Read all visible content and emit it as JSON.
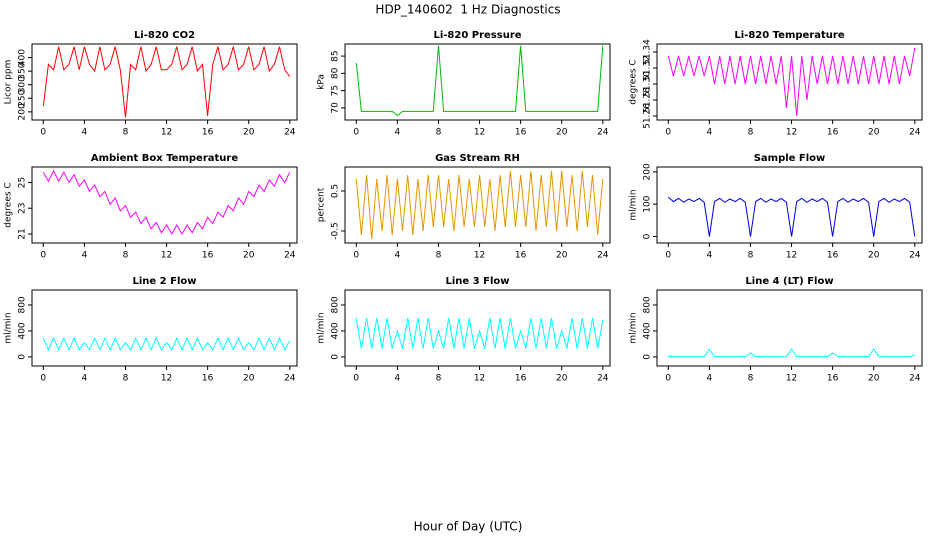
{
  "title": "HDP_140602  1 Hz Diagnostics",
  "xlabel": "Hour of Day (UTC)",
  "chart_data": [
    {
      "type": "line",
      "title": "Li-820 CO2",
      "ylabel": "Licor ppm",
      "color": "#ff0000",
      "x": [
        0,
        0.5,
        1,
        1.5,
        2,
        2.5,
        3,
        3.5,
        4,
        4.5,
        5,
        5.5,
        6,
        6.5,
        7,
        7.5,
        8,
        8.5,
        9,
        9.5,
        10,
        10.5,
        11,
        11.5,
        12,
        12.5,
        13,
        13.5,
        14,
        14.5,
        15,
        15.5,
        16,
        16.5,
        17,
        17.5,
        18,
        18.5,
        19,
        19.5,
        20,
        20.5,
        21,
        21.5,
        22,
        22.5,
        23,
        23.5,
        24
      ],
      "values": [
        220,
        375,
        355,
        440,
        355,
        375,
        440,
        355,
        440,
        375,
        350,
        440,
        355,
        375,
        440,
        355,
        180,
        375,
        355,
        440,
        350,
        375,
        440,
        355,
        355,
        375,
        440,
        355,
        375,
        440,
        350,
        375,
        185,
        375,
        440,
        355,
        375,
        440,
        355,
        375,
        440,
        355,
        375,
        440,
        350,
        375,
        440,
        355,
        330
      ],
      "xlim": [
        -1.1,
        24.7
      ],
      "xticks": [
        0,
        4,
        8,
        12,
        16,
        20,
        24
      ],
      "ylim": [
        170,
        450
      ],
      "yticks": [
        200,
        250,
        300,
        350,
        400
      ]
    },
    {
      "type": "line",
      "title": "Li-820 Pressure",
      "ylabel": "kPa",
      "color": "#00bb00",
      "x": [
        0,
        0.5,
        1,
        1.5,
        2,
        2.5,
        3,
        3.5,
        4,
        4.5,
        5,
        5.5,
        6,
        6.5,
        7,
        7.5,
        8,
        8.5,
        9,
        9.5,
        10,
        10.5,
        11,
        11.5,
        12,
        12.5,
        13,
        13.5,
        14,
        14.5,
        15,
        15.5,
        16,
        16.5,
        17,
        17.5,
        18,
        18.5,
        19,
        19.5,
        20,
        20.5,
        21,
        21.5,
        22,
        22.5,
        23,
        23.5,
        24
      ],
      "values": [
        83,
        69,
        69,
        69,
        69,
        69,
        69,
        69,
        67.8,
        69,
        69,
        69,
        69,
        69,
        69,
        69,
        88,
        69,
        69,
        69,
        69,
        69,
        69,
        69,
        69,
        69,
        69,
        69,
        69,
        69,
        69,
        69,
        88,
        69,
        69,
        69,
        69,
        69,
        69,
        69,
        69,
        69,
        69,
        69,
        69,
        69,
        69,
        69,
        88
      ],
      "xlim": [
        -1.1,
        24.7
      ],
      "xticks": [
        0,
        4,
        8,
        12,
        16,
        20,
        24
      ],
      "ylim": [
        66.5,
        88.5
      ],
      "yticks": [
        70,
        75,
        80,
        85
      ]
    },
    {
      "type": "line",
      "title": "Li-820 Temperature",
      "ylabel": "degrees C",
      "color": "#ff00ff",
      "x": [
        0,
        0.5,
        1,
        1.5,
        2,
        2.5,
        3,
        3.5,
        4,
        4.5,
        5,
        5.5,
        6,
        6.5,
        7,
        7.5,
        8,
        8.5,
        9,
        9.5,
        10,
        10.5,
        11,
        11.5,
        12,
        12.5,
        13,
        13.5,
        14,
        14.5,
        15,
        15.5,
        16,
        16.5,
        17,
        17.5,
        18,
        18.5,
        19,
        19.5,
        20,
        20.5,
        21,
        21.5,
        22,
        22.5,
        23,
        23.5,
        24
      ],
      "values": [
        51.335,
        51.31,
        51.335,
        51.31,
        51.335,
        51.31,
        51.335,
        51.31,
        51.335,
        51.3,
        51.335,
        51.3,
        51.335,
        51.3,
        51.335,
        51.3,
        51.335,
        51.3,
        51.335,
        51.3,
        51.335,
        51.3,
        51.335,
        51.27,
        51.335,
        51.26,
        51.335,
        51.28,
        51.335,
        51.3,
        51.335,
        51.3,
        51.335,
        51.3,
        51.335,
        51.3,
        51.335,
        51.3,
        51.335,
        51.3,
        51.335,
        51.3,
        51.335,
        51.3,
        51.335,
        51.3,
        51.335,
        51.31,
        51.345
      ],
      "xlim": [
        -1.1,
        24.7
      ],
      "xticks": [
        0,
        4,
        8,
        12,
        16,
        20,
        24
      ],
      "ylim": [
        51.255,
        51.35
      ],
      "yticks": [
        51.26,
        51.28,
        {
          "value": 51.3,
          "label": "51.30"
        },
        51.32,
        51.34
      ]
    },
    {
      "type": "line",
      "title": "Ambient Box Temperature",
      "ylabel": "degrees C",
      "color": "#ff00ff",
      "x": [
        0,
        0.5,
        1,
        1.5,
        2,
        2.5,
        3,
        3.5,
        4,
        4.5,
        5,
        5.5,
        6,
        6.5,
        7,
        7.5,
        8,
        8.5,
        9,
        9.5,
        10,
        10.5,
        11,
        11.5,
        12,
        12.5,
        13,
        13.5,
        14,
        14.5,
        15,
        15.5,
        16,
        16.5,
        17,
        17.5,
        18,
        18.5,
        19,
        19.5,
        20,
        20.5,
        21,
        21.5,
        22,
        22.5,
        23,
        23.5,
        24
      ],
      "values": [
        25.8,
        25.1,
        25.9,
        25.1,
        25.8,
        25.0,
        25.6,
        24.7,
        25.2,
        24.3,
        24.8,
        23.9,
        24.3,
        23.3,
        23.8,
        22.8,
        23.2,
        22.3,
        22.7,
        21.8,
        22.3,
        21.4,
        21.9,
        21.1,
        21.7,
        21.0,
        21.7,
        21.0,
        21.7,
        21.1,
        21.9,
        21.4,
        22.3,
        21.8,
        22.7,
        22.3,
        23.2,
        22.8,
        23.8,
        23.3,
        24.3,
        23.9,
        24.8,
        24.3,
        25.2,
        24.7,
        25.6,
        25.0,
        25.8
      ],
      "xlim": [
        -1.1,
        24.7
      ],
      "xticks": [
        0,
        4,
        8,
        12,
        16,
        20,
        24
      ],
      "ylim": [
        20.3,
        26.2
      ],
      "yticks": [
        21,
        23,
        25
      ]
    },
    {
      "type": "line",
      "title": "Gas Stream RH",
      "ylabel": "percent",
      "color": "#e69500",
      "x": [
        0,
        0.5,
        1,
        1.5,
        2,
        2.5,
        3,
        3.5,
        4,
        4.5,
        5,
        5.5,
        6,
        6.5,
        7,
        7.5,
        8,
        8.5,
        9,
        9.5,
        10,
        10.5,
        11,
        11.5,
        12,
        12.5,
        13,
        13.5,
        14,
        14.5,
        15,
        15.5,
        16,
        16.5,
        17,
        17.5,
        18,
        18.5,
        19,
        19.5,
        20,
        20.5,
        21,
        21.5,
        22,
        22.5,
        23,
        23.5,
        24
      ],
      "values": [
        0.8,
        -0.6,
        0.9,
        -0.7,
        0.8,
        -0.5,
        0.9,
        -0.6,
        0.8,
        -0.5,
        0.9,
        -0.6,
        0.8,
        -0.5,
        0.9,
        -0.4,
        0.9,
        -0.4,
        0.8,
        -0.5,
        0.9,
        -0.4,
        0.8,
        -0.4,
        0.9,
        -0.4,
        0.8,
        -0.5,
        0.9,
        -0.4,
        1.0,
        -0.4,
        0.9,
        -0.4,
        1.0,
        -0.5,
        0.9,
        -0.4,
        1.0,
        -0.5,
        1.0,
        -0.4,
        0.9,
        -0.5,
        1.0,
        -0.4,
        0.9,
        -0.6,
        0.8
      ],
      "xlim": [
        -1.1,
        24.7
      ],
      "xticks": [
        0,
        4,
        8,
        12,
        16,
        20,
        24
      ],
      "ylim": [
        -0.8,
        1.1
      ],
      "yticks": [
        -0.5,
        0.5
      ]
    },
    {
      "type": "line",
      "title": "Sample Flow",
      "ylabel": "ml/min",
      "color": "#0000dd",
      "x": [
        0,
        0.5,
        1,
        1.5,
        2,
        2.5,
        3,
        3.5,
        4,
        4.5,
        5,
        5.5,
        6,
        6.5,
        7,
        7.5,
        8,
        8.5,
        9,
        9.5,
        10,
        10.5,
        11,
        11.5,
        12,
        12.5,
        13,
        13.5,
        14,
        14.5,
        15,
        15.5,
        16,
        16.5,
        17,
        17.5,
        18,
        18.5,
        19,
        19.5,
        20,
        20.5,
        21,
        21.5,
        22,
        22.5,
        23,
        23.5,
        24
      ],
      "values": [
        122,
        108,
        118,
        106,
        116,
        108,
        118,
        106,
        0,
        108,
        118,
        106,
        116,
        108,
        118,
        106,
        0,
        108,
        118,
        106,
        116,
        108,
        118,
        106,
        0,
        108,
        118,
        106,
        116,
        108,
        118,
        106,
        0,
        108,
        118,
        106,
        116,
        108,
        118,
        106,
        0,
        108,
        118,
        106,
        116,
        108,
        118,
        106,
        0
      ],
      "xlim": [
        -1.1,
        24.7
      ],
      "xticks": [
        0,
        4,
        8,
        12,
        16,
        20,
        24
      ],
      "ylim": [
        -20,
        215
      ],
      "yticks": [
        0,
        100,
        200
      ]
    },
    {
      "type": "line",
      "title": "Line 2 Flow",
      "ylabel": "ml/min",
      "color": "#00ffff",
      "x": [
        0,
        0.5,
        1,
        1.5,
        2,
        2.5,
        3,
        3.5,
        4,
        4.5,
        5,
        5.5,
        6,
        6.5,
        7,
        7.5,
        8,
        8.5,
        9,
        9.5,
        10,
        10.5,
        11,
        11.5,
        12,
        12.5,
        13,
        13.5,
        14,
        14.5,
        15,
        15.5,
        16,
        16.5,
        17,
        17.5,
        18,
        18.5,
        19,
        19.5,
        20,
        20.5,
        21,
        21.5,
        22,
        22.5,
        23,
        23.5,
        24
      ],
      "values": [
        290,
        110,
        290,
        110,
        290,
        110,
        290,
        110,
        220,
        110,
        290,
        110,
        290,
        110,
        290,
        110,
        220,
        110,
        290,
        110,
        290,
        110,
        290,
        110,
        220,
        110,
        290,
        110,
        290,
        110,
        290,
        110,
        220,
        110,
        290,
        110,
        290,
        110,
        290,
        110,
        220,
        110,
        290,
        110,
        290,
        110,
        290,
        110,
        250
      ],
      "xlim": [
        -1.1,
        24.7
      ],
      "xticks": [
        0,
        4,
        8,
        12,
        16,
        20,
        24
      ],
      "ylim": [
        -140,
        1030
      ],
      "yticks": [
        0,
        400,
        800
      ]
    },
    {
      "type": "line",
      "title": "Line 3 Flow",
      "ylabel": "ml/min",
      "color": "#00ffff",
      "x": [
        0,
        0.5,
        1,
        1.5,
        2,
        2.5,
        3,
        3.5,
        4,
        4.5,
        5,
        5.5,
        6,
        6.5,
        7,
        7.5,
        8,
        8.5,
        9,
        9.5,
        10,
        10.5,
        11,
        11.5,
        12,
        12.5,
        13,
        13.5,
        14,
        14.5,
        15,
        15.5,
        16,
        16.5,
        17,
        17.5,
        18,
        18.5,
        19,
        19.5,
        20,
        20.5,
        21,
        21.5,
        22,
        22.5,
        23,
        23.5,
        24
      ],
      "values": [
        600,
        130,
        600,
        130,
        600,
        130,
        600,
        130,
        400,
        130,
        600,
        130,
        600,
        130,
        600,
        130,
        400,
        130,
        600,
        130,
        600,
        130,
        600,
        130,
        400,
        130,
        600,
        130,
        600,
        130,
        600,
        130,
        400,
        130,
        600,
        130,
        600,
        130,
        600,
        130,
        400,
        130,
        600,
        130,
        600,
        130,
        600,
        130,
        560
      ],
      "xlim": [
        -1.1,
        24.7
      ],
      "xticks": [
        0,
        4,
        8,
        12,
        16,
        20,
        24
      ],
      "ylim": [
        -140,
        1030
      ],
      "yticks": [
        0,
        400,
        800
      ]
    },
    {
      "type": "line",
      "title": "Line 4 (LT) Flow",
      "ylabel": "ml/min",
      "color": "#00ffff",
      "x": [
        0,
        0.5,
        1,
        1.5,
        2,
        2.5,
        3,
        3.5,
        4,
        4.5,
        5,
        5.5,
        6,
        6.5,
        7,
        7.5,
        8,
        8.5,
        9,
        9.5,
        10,
        10.5,
        11,
        11.5,
        12,
        12.5,
        13,
        13.5,
        14,
        14.5,
        15,
        15.5,
        16,
        16.5,
        17,
        17.5,
        18,
        18.5,
        19,
        19.5,
        20,
        20.5,
        21,
        21.5,
        22,
        22.5,
        23,
        23.5,
        24
      ],
      "values": [
        5,
        5,
        5,
        5,
        5,
        5,
        5,
        5,
        120,
        5,
        5,
        5,
        5,
        5,
        5,
        5,
        60,
        5,
        5,
        5,
        5,
        5,
        5,
        5,
        120,
        5,
        5,
        5,
        5,
        5,
        5,
        5,
        60,
        5,
        5,
        5,
        5,
        5,
        5,
        5,
        120,
        5,
        5,
        5,
        5,
        5,
        5,
        5,
        30
      ],
      "xlim": [
        -1.1,
        24.7
      ],
      "xticks": [
        0,
        4,
        8,
        12,
        16,
        20,
        24
      ],
      "ylim": [
        -140,
        1030
      ],
      "yticks": [
        0,
        400,
        800
      ]
    }
  ]
}
